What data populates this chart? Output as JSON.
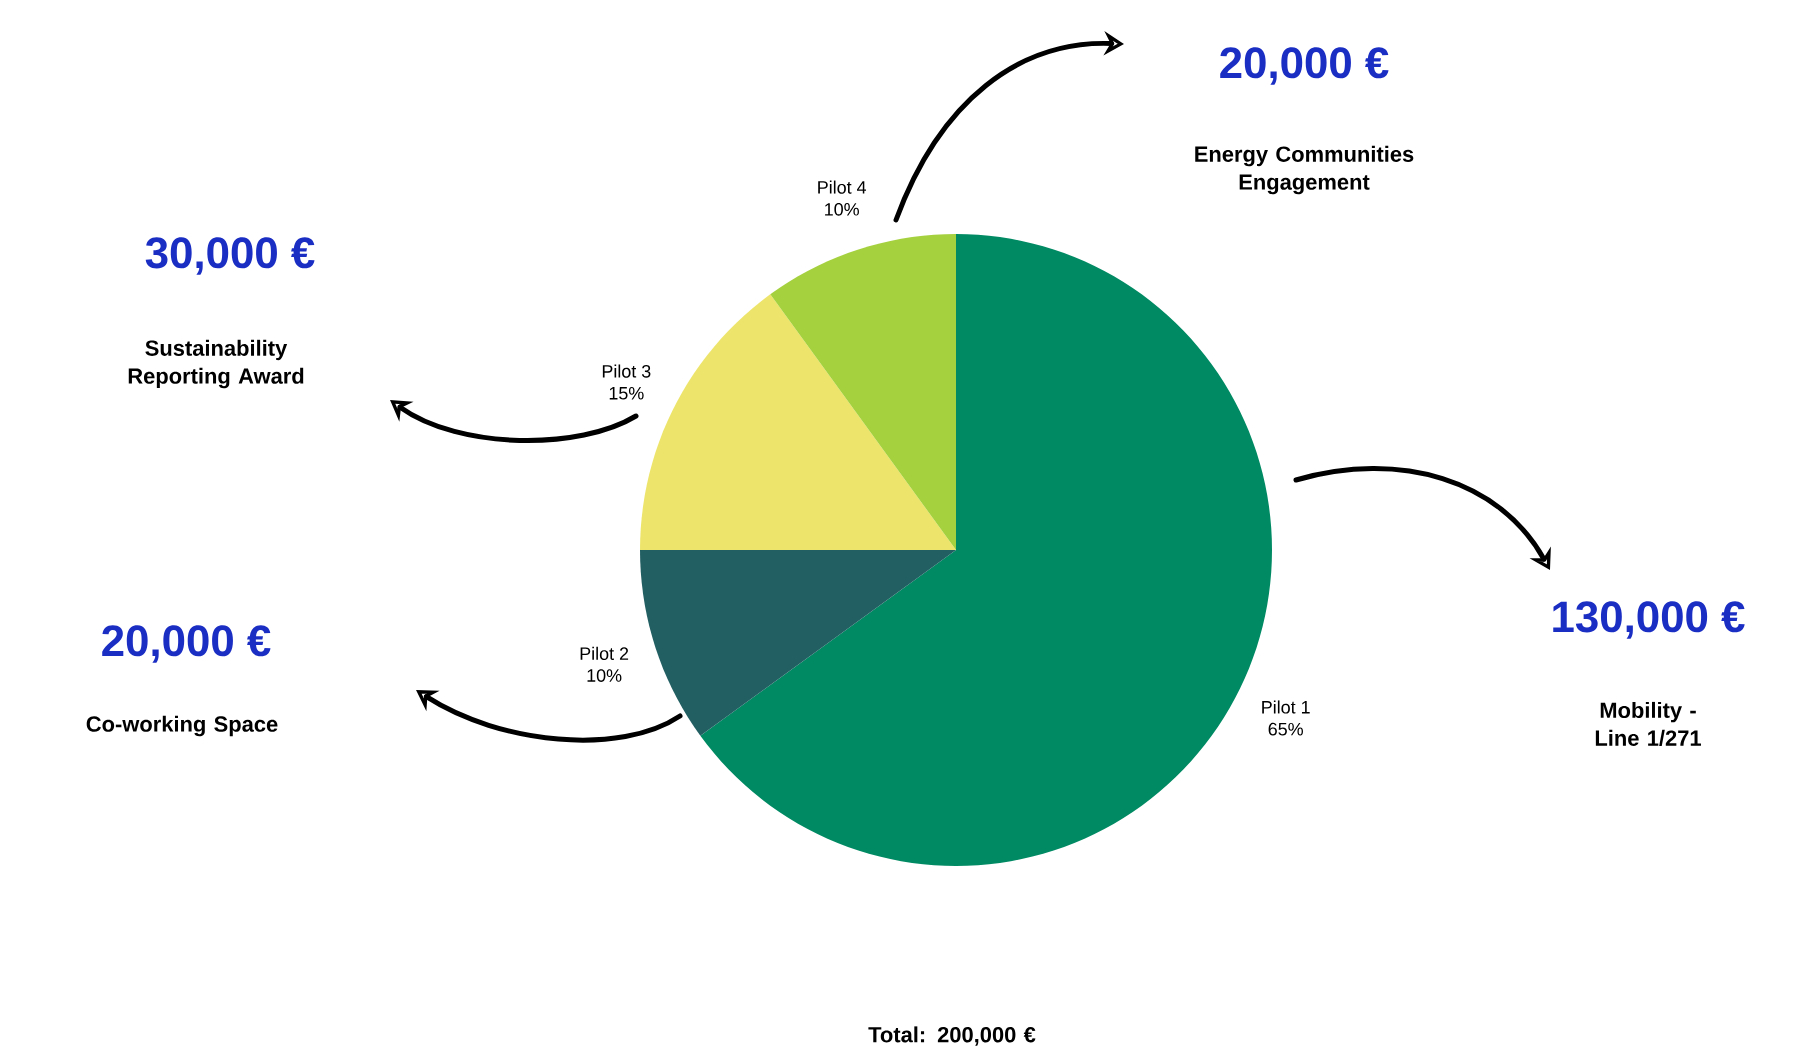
{
  "chart_data": {
    "type": "pie",
    "categories": [
      "Pilot 1",
      "Pilot 2",
      "Pilot 3",
      "Pilot 4"
    ],
    "values": [
      65,
      10,
      15,
      10
    ],
    "value_labels": [
      "65%",
      "10%",
      "15%",
      "10%"
    ],
    "colors": [
      "#008a63",
      "#225f63",
      "#ede56b",
      "#a5d13f"
    ],
    "annotations": [
      "20,000 €",
      "Energy Communities Engagement",
      "30,000 €",
      "Sustainability Reporting Award",
      "20,000 €",
      "Co-working Space",
      "130,000 €",
      "Mobility - Line 1/271",
      "Total: 200,000 €"
    ]
  }
}
